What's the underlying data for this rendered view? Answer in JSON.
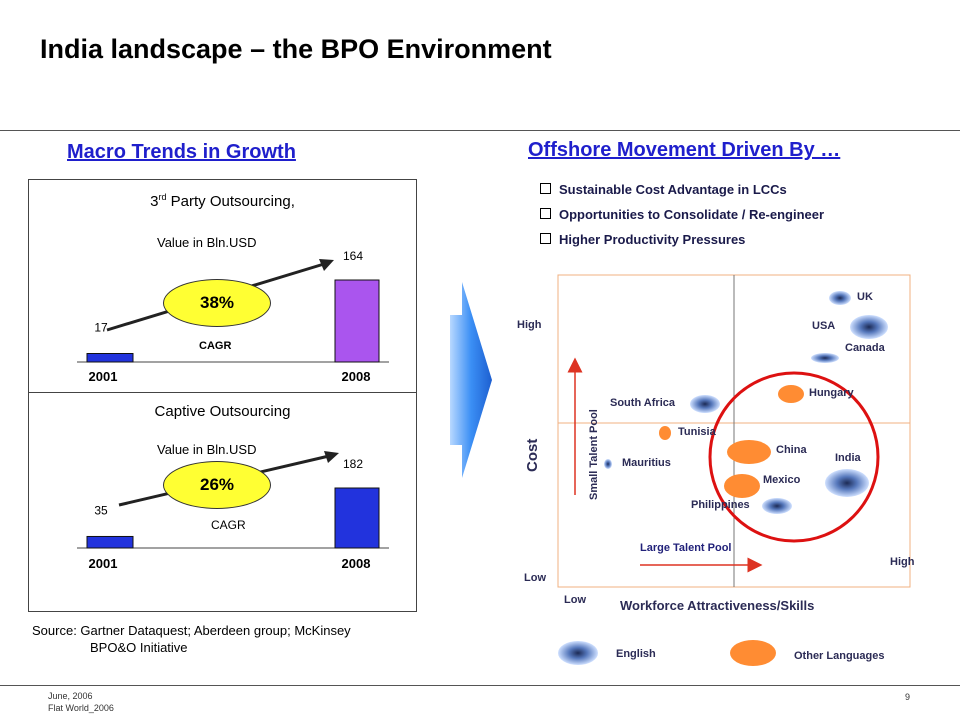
{
  "slide": {
    "title": "India landscape – the BPO Environment",
    "page_number": "9",
    "footer_date": "June, 2006",
    "footer_company": "Flat World_2006"
  },
  "left": {
    "heading": "Macro Trends in Growth ",
    "source_line1": "Source: Gartner Dataquest; Aberdeen group; McKinsey",
    "source_line2": "BPO&O Initiative",
    "third_party": {
      "title_prefix": "3",
      "title_sup": "rd",
      "title_suffix": " Party Outsourcing,",
      "subtitle": "Value in Bln.USD",
      "cagr_value": "38%",
      "cagr_label": "CAGR",
      "bar_color_2001": "#2233dd",
      "bar_color_2008": "#aa55ee"
    },
    "captive": {
      "title": "Captive Outsourcing",
      "subtitle": "Value in Bln.USD",
      "cagr_value": "26%",
      "cagr_label": "CAGR",
      "bar_color_2001": "#2233dd",
      "bar_color_2008": "#2233dd"
    }
  },
  "right": {
    "heading": "Offshore Movement Driven By …",
    "bullets": [
      "Sustainable Cost Advantage in LCCs",
      "Opportunities to Consolidate / Re-engineer",
      "Higher Productivity Pressures"
    ],
    "matrix": {
      "y_axis_label": "Cost",
      "y_high": "High",
      "y_low": "Low",
      "x_axis_label": "Workforce Attractiveness/Skills",
      "x_low": "Low",
      "x_high": "High",
      "small_pool_label": "Small Talent Pool",
      "large_pool_label": "Large Talent Pool",
      "countries": {
        "uk": "UK",
        "usa": "USA",
        "canada": "Canada",
        "hungary": "Hungary",
        "south_africa": "South Africa",
        "tunisia": "Tunisia",
        "china": "China",
        "india": "India",
        "mauritius": "Mauritius",
        "mexico": "Mexico",
        "philippines": "Philippines"
      }
    },
    "legend": {
      "english": "English",
      "other": "Other Languages",
      "english_color": "#6688cc",
      "other_color": "#ff8c33"
    }
  },
  "chart_data": [
    {
      "type": "bar",
      "title": "3rd Party Outsourcing,",
      "subtitle": "Value in Bln.USD",
      "categories": [
        "2001",
        "2008"
      ],
      "values": [
        17,
        164
      ],
      "annotation": "38% CAGR"
    },
    {
      "type": "bar",
      "title": "Captive Outsourcing",
      "subtitle": "Value in Bln.USD",
      "categories": [
        "2001",
        "2008"
      ],
      "values": [
        35,
        182
      ],
      "annotation": "26% CAGR"
    }
  ]
}
